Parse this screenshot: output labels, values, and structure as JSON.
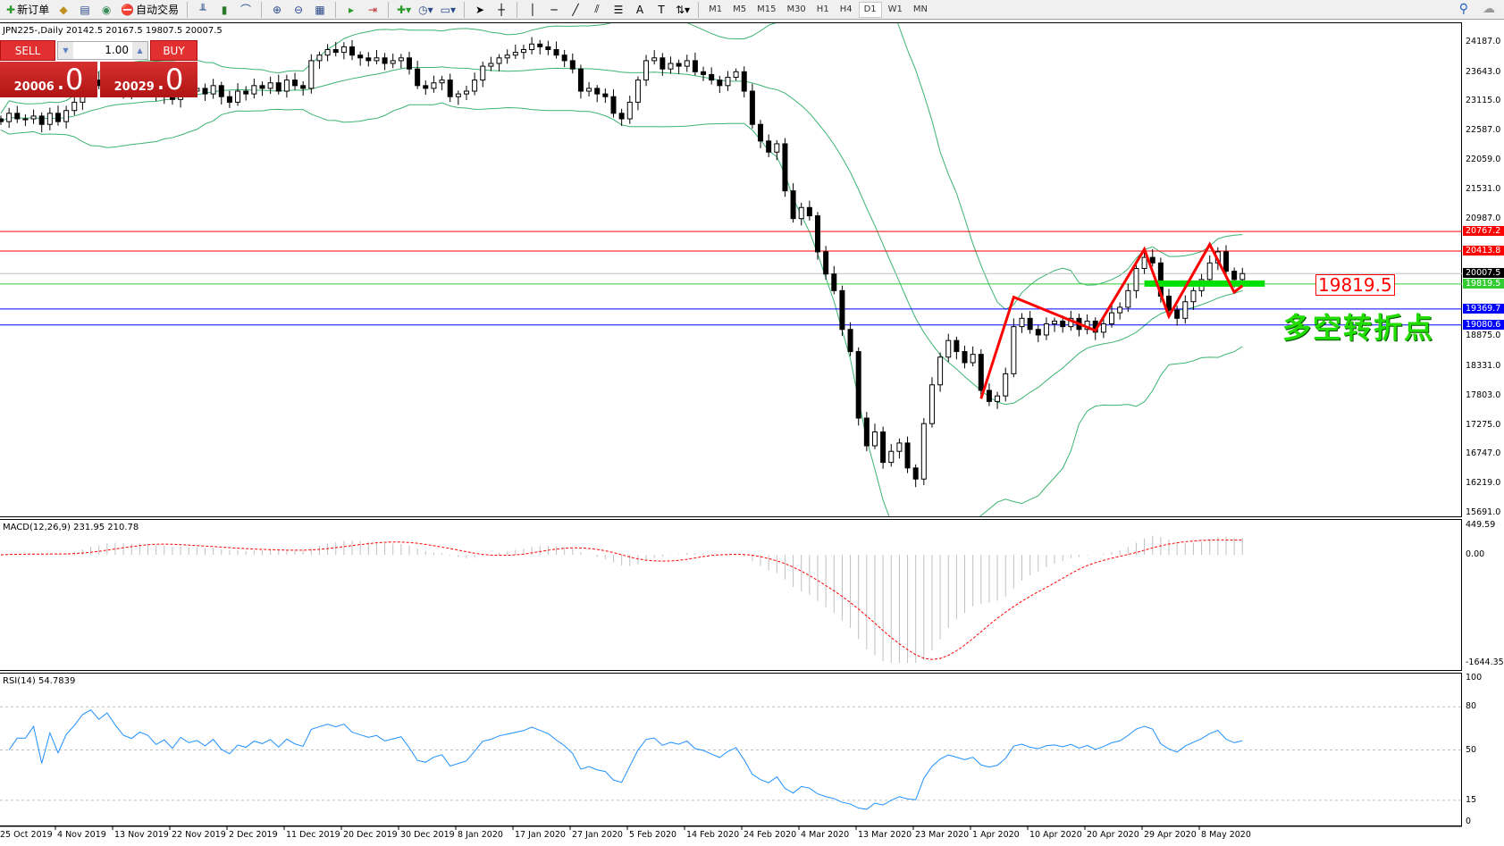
{
  "toolbar": {
    "new_order": "新订单",
    "auto_trading": "自动交易",
    "icons": [
      "new-order-icon",
      "market-watch-icon",
      "navigator-icon",
      "signal-icon",
      "auto-trading-icon",
      "bar-chart-icon",
      "candlestick-icon",
      "line-chart-icon",
      "zoom-in-icon",
      "zoom-out-icon",
      "tile-windows-icon",
      "chart-shift-icon",
      "autoscroll-icon",
      "indicators-icon",
      "periods-icon",
      "templates-icon",
      "cursor-icon",
      "crosshair-icon",
      "vertical-line-icon",
      "horizontal-line-icon",
      "trendline-icon",
      "equidistant-channel-icon",
      "fibonacci-icon",
      "text-icon",
      "text-label-icon",
      "arrows-icon",
      "search-icon",
      "community-icon"
    ],
    "timeframes": [
      "M1",
      "M5",
      "M15",
      "M30",
      "H1",
      "H4",
      "D1",
      "W1",
      "MN"
    ],
    "active_timeframe": "D1",
    "text_tool": "A"
  },
  "chart": {
    "title": "JPN225-,Daily  20142.5 20167.5 19807.5 20007.5"
  },
  "one_click": {
    "sell": "SELL",
    "buy": "BUY",
    "lot": "1.00",
    "sell_big": "20006",
    "sell_small": ".0",
    "buy_big": "20029",
    "buy_small": ".0"
  },
  "annotations": {
    "note": "19819.5",
    "cn_text": "多空转折点"
  },
  "colors": {
    "bull": "#ffffff",
    "bear": "#000000",
    "bands": "#3cb371",
    "zigzag": "#ff0000",
    "support": "#00e000",
    "macd_hist": "#c0c0c0",
    "macd_signal": "#ff0000",
    "rsi": "#1e90ff"
  },
  "chart_data": {
    "type": "candlestick",
    "symbol": "JPN225-",
    "timeframe": "Daily",
    "last_ohlc": {
      "open": 20142.5,
      "high": 20167.5,
      "low": 19807.5,
      "close": 20007.5
    },
    "close": [
      22750,
      22900,
      22800,
      22800,
      22850,
      22700,
      22900,
      22750,
      22950,
      23100,
      23350,
      23500,
      23400,
      23600,
      23450,
      23300,
      23250,
      23400,
      23350,
      23200,
      23300,
      23150,
      23400,
      23300,
      23350,
      23250,
      23400,
      23200,
      23100,
      23300,
      23250,
      23400,
      23350,
      23450,
      23300,
      23500,
      23400,
      23350,
      23850,
      23950,
      24050,
      24000,
      24100,
      23950,
      23900,
      23850,
      23900,
      23800,
      23850,
      23900,
      23700,
      23400,
      23350,
      23450,
      23500,
      23200,
      23250,
      23300,
      23500,
      23750,
      23800,
      23900,
      23950,
      24000,
      24050,
      24150,
      24100,
      24050,
      23950,
      23850,
      23700,
      23300,
      23350,
      23250,
      23200,
      22900,
      22800,
      23100,
      23500,
      23850,
      23900,
      23700,
      23800,
      23750,
      23850,
      23650,
      23600,
      23500,
      23400,
      23550,
      23650,
      23300,
      22700,
      22400,
      22200,
      22350,
      21500,
      21000,
      21200,
      21050,
      20400,
      20000,
      19700,
      19000,
      18600,
      17400,
      16900,
      17150,
      16600,
      16800,
      16950,
      16500,
      16300,
      17300,
      18000,
      18500,
      18800,
      18600,
      18400,
      18550,
      17900,
      17700,
      17800,
      18200,
      19050,
      19200,
      19000,
      18900,
      19100,
      19150,
      19050,
      19200,
      19000,
      19150,
      18950,
      19100,
      19300,
      19400,
      19700,
      20100,
      20300,
      20200,
      19600,
      19350,
      19200,
      19500,
      19700,
      19900,
      20200,
      20400,
      20050,
      19900,
      20007.5
    ],
    "price_axis": [
      "24187.0",
      "23643.0",
      "23115.0",
      "22587.0",
      "22059.0",
      "21531.0",
      "20987.0",
      "18875.0",
      "18331.0",
      "17803.0",
      "17275.0",
      "16747.0",
      "16219.0",
      "15691.0"
    ],
    "price_range": [
      15691,
      24187
    ],
    "price_lines": [
      {
        "price": "20767.2",
        "color": "#ff0000"
      },
      {
        "price": "20413.8",
        "color": "#ff0000"
      },
      {
        "price": "20007.5",
        "color": "#000000",
        "line": "#c0c0c0"
      },
      {
        "price": "19819.5",
        "color": "#33cc33"
      },
      {
        "price": "19369.7",
        "color": "#0000ff"
      },
      {
        "price": "19080.6",
        "color": "#0000ff"
      }
    ],
    "indicators": {
      "bollinger": {
        "period": 20,
        "deviation": 2
      }
    },
    "zigzag": [
      [
        120,
        17750
      ],
      [
        124,
        19583
      ],
      [
        134,
        18980
      ],
      [
        140,
        20447
      ],
      [
        143,
        19237
      ],
      [
        148,
        20534
      ],
      [
        151,
        19672
      ],
      [
        152,
        19789
      ]
    ],
    "support_zone": {
      "price": 19819.5,
      "from_bar": 140,
      "to_bar": 152
    },
    "macd": {
      "label": "MACD(12,26,9) 231.95 210.78",
      "axis": [
        "449.59",
        "0.00",
        "-1644.35"
      ],
      "range": [
        -1644.35,
        449.59
      ]
    },
    "rsi": {
      "label": "RSI(14) 54.7839",
      "axis": [
        "100",
        "80",
        "50",
        "15",
        "0"
      ],
      "levels": [
        80,
        50,
        15
      ]
    },
    "dates": [
      "25 Oct 2019",
      "4 Nov 2019",
      "13 Nov 2019",
      "22 Nov 2019",
      "2 Dec 2019",
      "11 Dec 2019",
      "20 Dec 2019",
      "30 Dec 2019",
      "8 Jan 2020",
      "17 Jan 2020",
      "27 Jan 2020",
      "5 Feb 2020",
      "14 Feb 2020",
      "24 Feb 2020",
      "4 Mar 2020",
      "13 Mar 2020",
      "23 Mar 2020",
      "1 Apr 2020",
      "10 Apr 2020",
      "20 Apr 2020",
      "29 Apr 2020",
      "8 May 2020"
    ]
  }
}
